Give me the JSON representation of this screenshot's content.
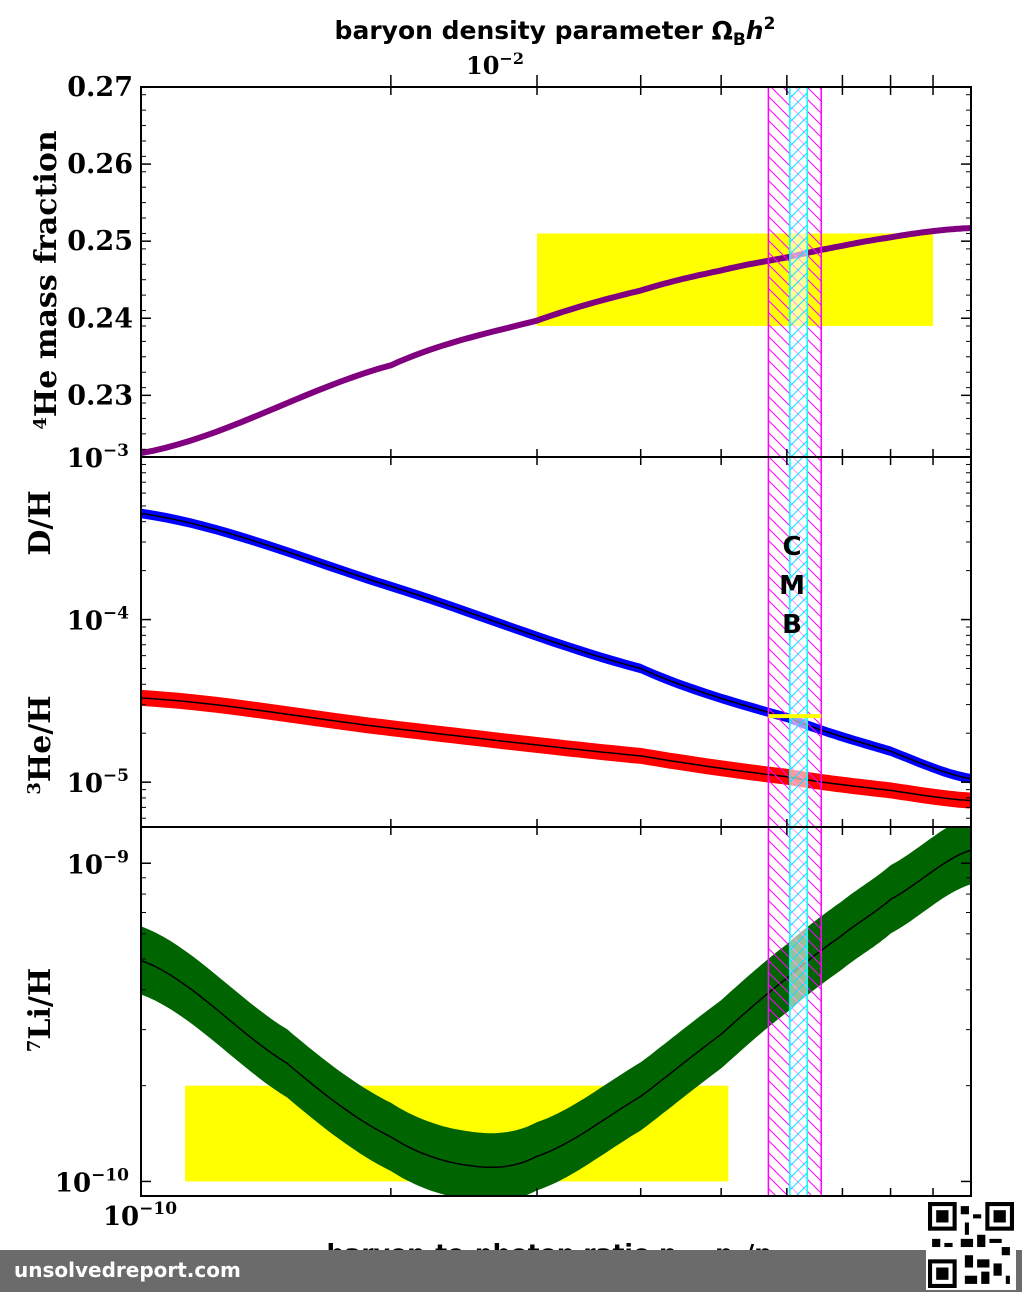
{
  "figure": {
    "top_title": "baryon density parameter Ω",
    "top_title_sub": "B",
    "top_title_end": "h",
    "top_title_sup": "2",
    "top_tick_base": "10",
    "top_tick_exp": "−2",
    "bottom_xlabel": "baryon-to-photon ratio η = n",
    "bottom_xlabel_sub1": "b",
    "bottom_xlabel_mid": "/n",
    "bottom_xlabel_sub2": "γ",
    "x_tick_base": "10",
    "x_tick_exp": "−10",
    "cmb_letters": [
      "C",
      "M",
      "B"
    ],
    "colors": {
      "he4": "#800080",
      "deuterium": "#0000ff",
      "he3": "#ff0000",
      "li7": "#006400",
      "observed": "#ffff00",
      "cmb_outer": "#ff00ff",
      "cmb_inner": "#00ffff"
    }
  },
  "chart_data": [
    {
      "type": "line",
      "panel": "top",
      "ylabel_sup": "4",
      "ylabel": "He mass fraction",
      "ylim": [
        0.222,
        0.27
      ],
      "yticks": [
        "0.27",
        "0.26",
        "0.25",
        "0.24",
        "0.23"
      ],
      "xscale": "log",
      "xlim": [
        1e-10,
        1e-09
      ],
      "series": [
        {
          "x": [
            1e-10,
            2e-10,
            3e-10,
            4e-10,
            5e-10,
            6e-10,
            7e-10,
            8e-10,
            9e-10,
            1e-09
          ],
          "y": [
            0.2225,
            0.2339,
            0.2397,
            0.2436,
            0.2462,
            0.2479,
            0.2494,
            0.2505,
            0.2513,
            0.2517
          ]
        }
      ],
      "observed_box": {
        "x": [
          3e-10,
          9e-10
        ],
        "y": [
          0.239,
          0.251
        ]
      }
    },
    {
      "type": "area",
      "panel": "middle",
      "ylabel_top": "D/H",
      "ylabel_bottom_sup": "3",
      "ylabel_bottom": "He/H",
      "yscale": "log",
      "ylim": [
        5.3e-06,
        0.001
      ],
      "yticks": [
        {
          "base": "10",
          "exp": "−3"
        },
        {
          "base": "10",
          "exp": "−4"
        },
        {
          "base": "10",
          "exp": "−5"
        }
      ],
      "xscale": "log",
      "xlim": [
        1e-10,
        1e-09
      ],
      "series": [
        {
          "name_sup": "",
          "x": [
            1e-10,
            2e-10,
            4e-10,
            6e-10,
            8e-10,
            1e-09
          ],
          "y": [
            0.00045,
            0.00016,
            5e-05,
            2.5e-05,
            1.55e-05,
            1.05e-05
          ],
          "band_ratio": 1.07
        },
        {
          "x": [
            1e-10,
            2e-10,
            4e-10,
            6e-10,
            8e-10,
            1e-09
          ],
          "y": [
            3.3e-05,
            2.15e-05,
            1.45e-05,
            1.08e-05,
            8.9e-06,
            7.7e-06
          ],
          "band_ratio": 1.12
        }
      ],
      "observed_segment": {
        "x": [
          5.7e-10,
          6.6e-10
        ],
        "y": 2.55e-05
      }
    },
    {
      "type": "area",
      "panel": "bottom",
      "ylabel_sup": "7",
      "ylabel": "Li/H",
      "yscale": "log",
      "ylim": [
        9e-11,
        1.3e-09
      ],
      "yticks": [
        {
          "base": "10",
          "exp": "−9"
        },
        {
          "base": "10",
          "exp": "−10"
        }
      ],
      "xscale": "log",
      "xlim": [
        1e-10,
        1e-09
      ],
      "series": [
        {
          "x": [
            1e-10,
            1.5e-10,
            2e-10,
            2.5e-10,
            3e-10,
            4e-10,
            5e-10,
            6e-10,
            7e-10,
            8e-10,
            1e-09
          ],
          "y": [
            4.95e-10,
            2.35e-10,
            1.38e-10,
            1.12e-10,
            1.2e-10,
            1.85e-10,
            2.9e-10,
            4.35e-10,
            5.95e-10,
            7.7e-10,
            1.1e-09
          ],
          "band_ratio": 1.28
        }
      ],
      "observed_box": {
        "x": [
          1.13e-10,
          5.1e-10
        ],
        "y": [
          1e-10,
          2e-10
        ]
      }
    }
  ],
  "cmb_band": {
    "outer": [
      5.7e-10,
      6.6e-10
    ],
    "inner": [
      6.05e-10,
      6.35e-10
    ]
  },
  "footer": {
    "site": "unsolvedreport.com"
  }
}
